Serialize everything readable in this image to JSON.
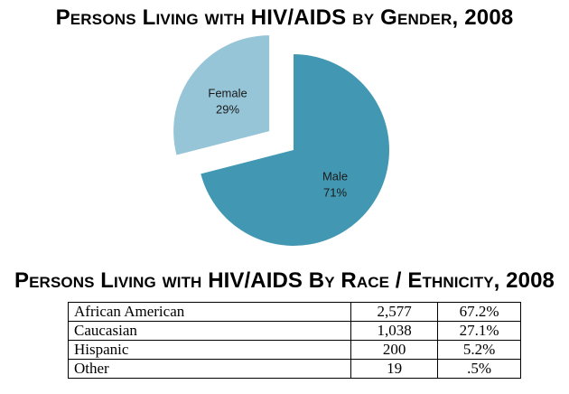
{
  "chart_data": [
    {
      "type": "pie",
      "title": "Persons Living with HIV/AIDS by Gender, 2008",
      "slices": [
        {
          "label": "Male",
          "value": 71,
          "display": "71%",
          "color": "#4298b2"
        },
        {
          "label": "Female",
          "value": 29,
          "display": "29%",
          "color": "#96c5d8"
        }
      ],
      "exploded": "Female"
    },
    {
      "type": "table",
      "title": "Persons Living with HIV/AIDS By Race / Ethnicity, 2008",
      "rows": [
        {
          "group": "African American",
          "count": "2,577",
          "percent": "67.2%"
        },
        {
          "group": "Caucasian",
          "count": "1,038",
          "percent": "27.1%"
        },
        {
          "group": "Hispanic",
          "count": "200",
          "percent": "5.2%"
        },
        {
          "group": "Other",
          "count": "19",
          "percent": ".5%"
        }
      ]
    }
  ]
}
